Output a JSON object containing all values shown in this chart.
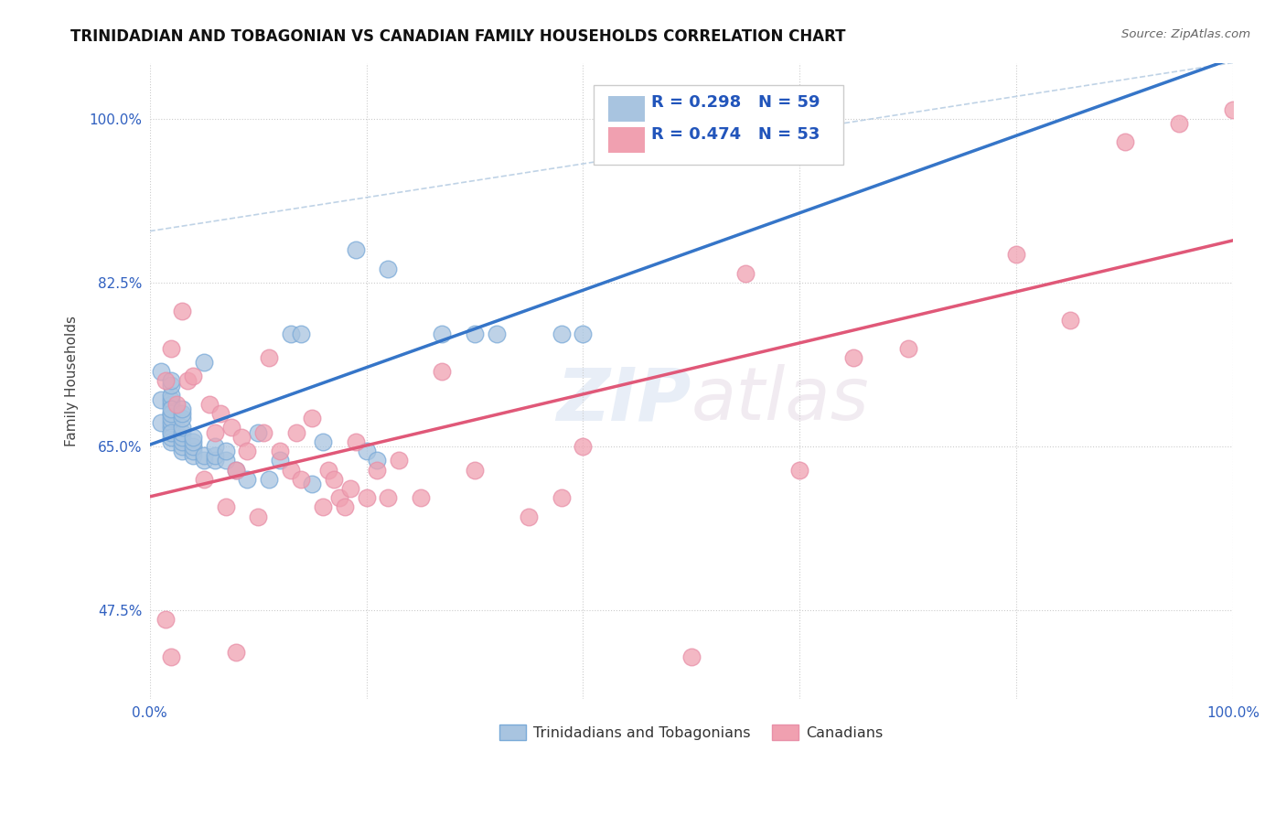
{
  "title": "TRINIDADIAN AND TOBAGONIAN VS CANADIAN FAMILY HOUSEHOLDS CORRELATION CHART",
  "source": "Source: ZipAtlas.com",
  "ylabel": "Family Households",
  "xlabel": "",
  "xlim": [
    0.0,
    1.0
  ],
  "ylim": [
    0.38,
    1.06
  ],
  "yticks": [
    0.475,
    0.65,
    0.825,
    1.0
  ],
  "ytick_labels": [
    "47.5%",
    "65.0%",
    "82.5%",
    "100.0%"
  ],
  "xticks": [
    0.0,
    0.2,
    0.4,
    0.6,
    0.8,
    1.0
  ],
  "xtick_labels": [
    "0.0%",
    "",
    "",
    "",
    "",
    "100.0%"
  ],
  "blue_R": 0.298,
  "blue_N": 59,
  "pink_R": 0.474,
  "pink_N": 53,
  "blue_color": "#a8c4e0",
  "pink_color": "#f0a0b0",
  "blue_line_color": "#3575c8",
  "pink_line_color": "#e05878",
  "diagonal_color": "#b0c8e0",
  "legend_label_blue": "Trinidadians and Tobagonians",
  "legend_label_pink": "Canadians",
  "blue_x": [
    0.01,
    0.01,
    0.01,
    0.02,
    0.02,
    0.02,
    0.02,
    0.02,
    0.02,
    0.02,
    0.02,
    0.02,
    0.02,
    0.02,
    0.02,
    0.02,
    0.02,
    0.02,
    0.03,
    0.03,
    0.03,
    0.03,
    0.03,
    0.03,
    0.03,
    0.03,
    0.03,
    0.04,
    0.04,
    0.04,
    0.04,
    0.04,
    0.05,
    0.05,
    0.05,
    0.06,
    0.06,
    0.06,
    0.07,
    0.07,
    0.08,
    0.09,
    0.1,
    0.11,
    0.12,
    0.13,
    0.14,
    0.15,
    0.16,
    0.19,
    0.2,
    0.21,
    0.22,
    0.27,
    0.3,
    0.32,
    0.38,
    0.4,
    0.46
  ],
  "blue_y": [
    0.73,
    0.7,
    0.675,
    0.685,
    0.695,
    0.7,
    0.705,
    0.715,
    0.72,
    0.665,
    0.67,
    0.675,
    0.68,
    0.685,
    0.69,
    0.655,
    0.66,
    0.665,
    0.645,
    0.65,
    0.655,
    0.66,
    0.665,
    0.67,
    0.68,
    0.685,
    0.69,
    0.64,
    0.645,
    0.65,
    0.655,
    0.66,
    0.635,
    0.64,
    0.74,
    0.635,
    0.64,
    0.65,
    0.635,
    0.645,
    0.625,
    0.615,
    0.665,
    0.615,
    0.635,
    0.77,
    0.77,
    0.61,
    0.655,
    0.86,
    0.645,
    0.635,
    0.84,
    0.77,
    0.77,
    0.77,
    0.77,
    0.77,
    1.01
  ],
  "pink_x": [
    0.015,
    0.02,
    0.025,
    0.03,
    0.035,
    0.04,
    0.05,
    0.055,
    0.06,
    0.065,
    0.07,
    0.075,
    0.08,
    0.085,
    0.09,
    0.1,
    0.105,
    0.11,
    0.12,
    0.13,
    0.135,
    0.14,
    0.15,
    0.16,
    0.165,
    0.17,
    0.175,
    0.18,
    0.185,
    0.19,
    0.2,
    0.21,
    0.22,
    0.23,
    0.25,
    0.27,
    0.3,
    0.35,
    0.38,
    0.4,
    0.5,
    0.55,
    0.6,
    0.65,
    0.7,
    0.8,
    0.85,
    0.9,
    0.95,
    1.0,
    0.015,
    0.02,
    0.08
  ],
  "pink_y": [
    0.72,
    0.755,
    0.695,
    0.795,
    0.72,
    0.725,
    0.615,
    0.695,
    0.665,
    0.685,
    0.585,
    0.67,
    0.625,
    0.66,
    0.645,
    0.575,
    0.665,
    0.745,
    0.645,
    0.625,
    0.665,
    0.615,
    0.68,
    0.585,
    0.625,
    0.615,
    0.595,
    0.585,
    0.605,
    0.655,
    0.595,
    0.625,
    0.595,
    0.635,
    0.595,
    0.73,
    0.625,
    0.575,
    0.595,
    0.65,
    0.425,
    0.835,
    0.625,
    0.745,
    0.755,
    0.855,
    0.785,
    0.975,
    0.995,
    1.01,
    0.465,
    0.425,
    0.43
  ]
}
